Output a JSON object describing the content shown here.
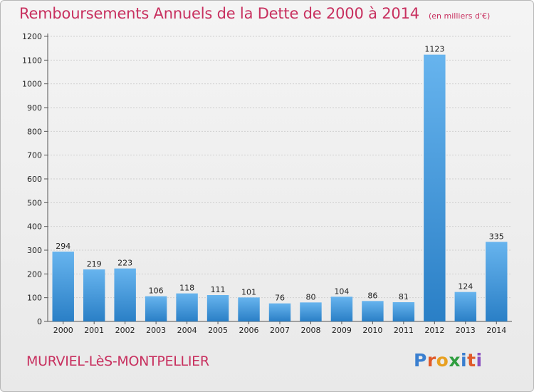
{
  "title": "Remboursements Annuels de la Dette de 2000 à 2014",
  "subtitle": "(en milliers d'€)",
  "commune": "MURVIEL-LèS-MONTPELLIER",
  "logo": {
    "text": "Proxiti",
    "letters": [
      {
        "char": "P",
        "color": "#3a7fd0"
      },
      {
        "char": "r",
        "color": "#e05a2a"
      },
      {
        "char": "o",
        "color": "#e8a020"
      },
      {
        "char": "x",
        "color": "#2f9e3f"
      },
      {
        "char": "i",
        "color": "#3a7fd0"
      },
      {
        "char": "t",
        "color": "#e05a2a"
      },
      {
        "char": "i",
        "color": "#8a4fc0"
      }
    ]
  },
  "colors": {
    "title": "#c8305f",
    "bar_top": "#67b4ee",
    "bar_bottom": "#2a7fc6"
  },
  "chart_data": {
    "type": "bar",
    "categories": [
      "2000",
      "2001",
      "2002",
      "2003",
      "2004",
      "2005",
      "2006",
      "2007",
      "2008",
      "2009",
      "2010",
      "2011",
      "2012",
      "2013",
      "2014"
    ],
    "values": [
      294,
      219,
      223,
      106,
      118,
      111,
      101,
      76,
      80,
      104,
      86,
      81,
      1123,
      124,
      335
    ],
    "ylim": [
      0,
      1200
    ],
    "yticks": [
      0,
      100,
      200,
      300,
      400,
      500,
      600,
      700,
      800,
      900,
      1000,
      1100,
      1200
    ],
    "grid": true
  }
}
